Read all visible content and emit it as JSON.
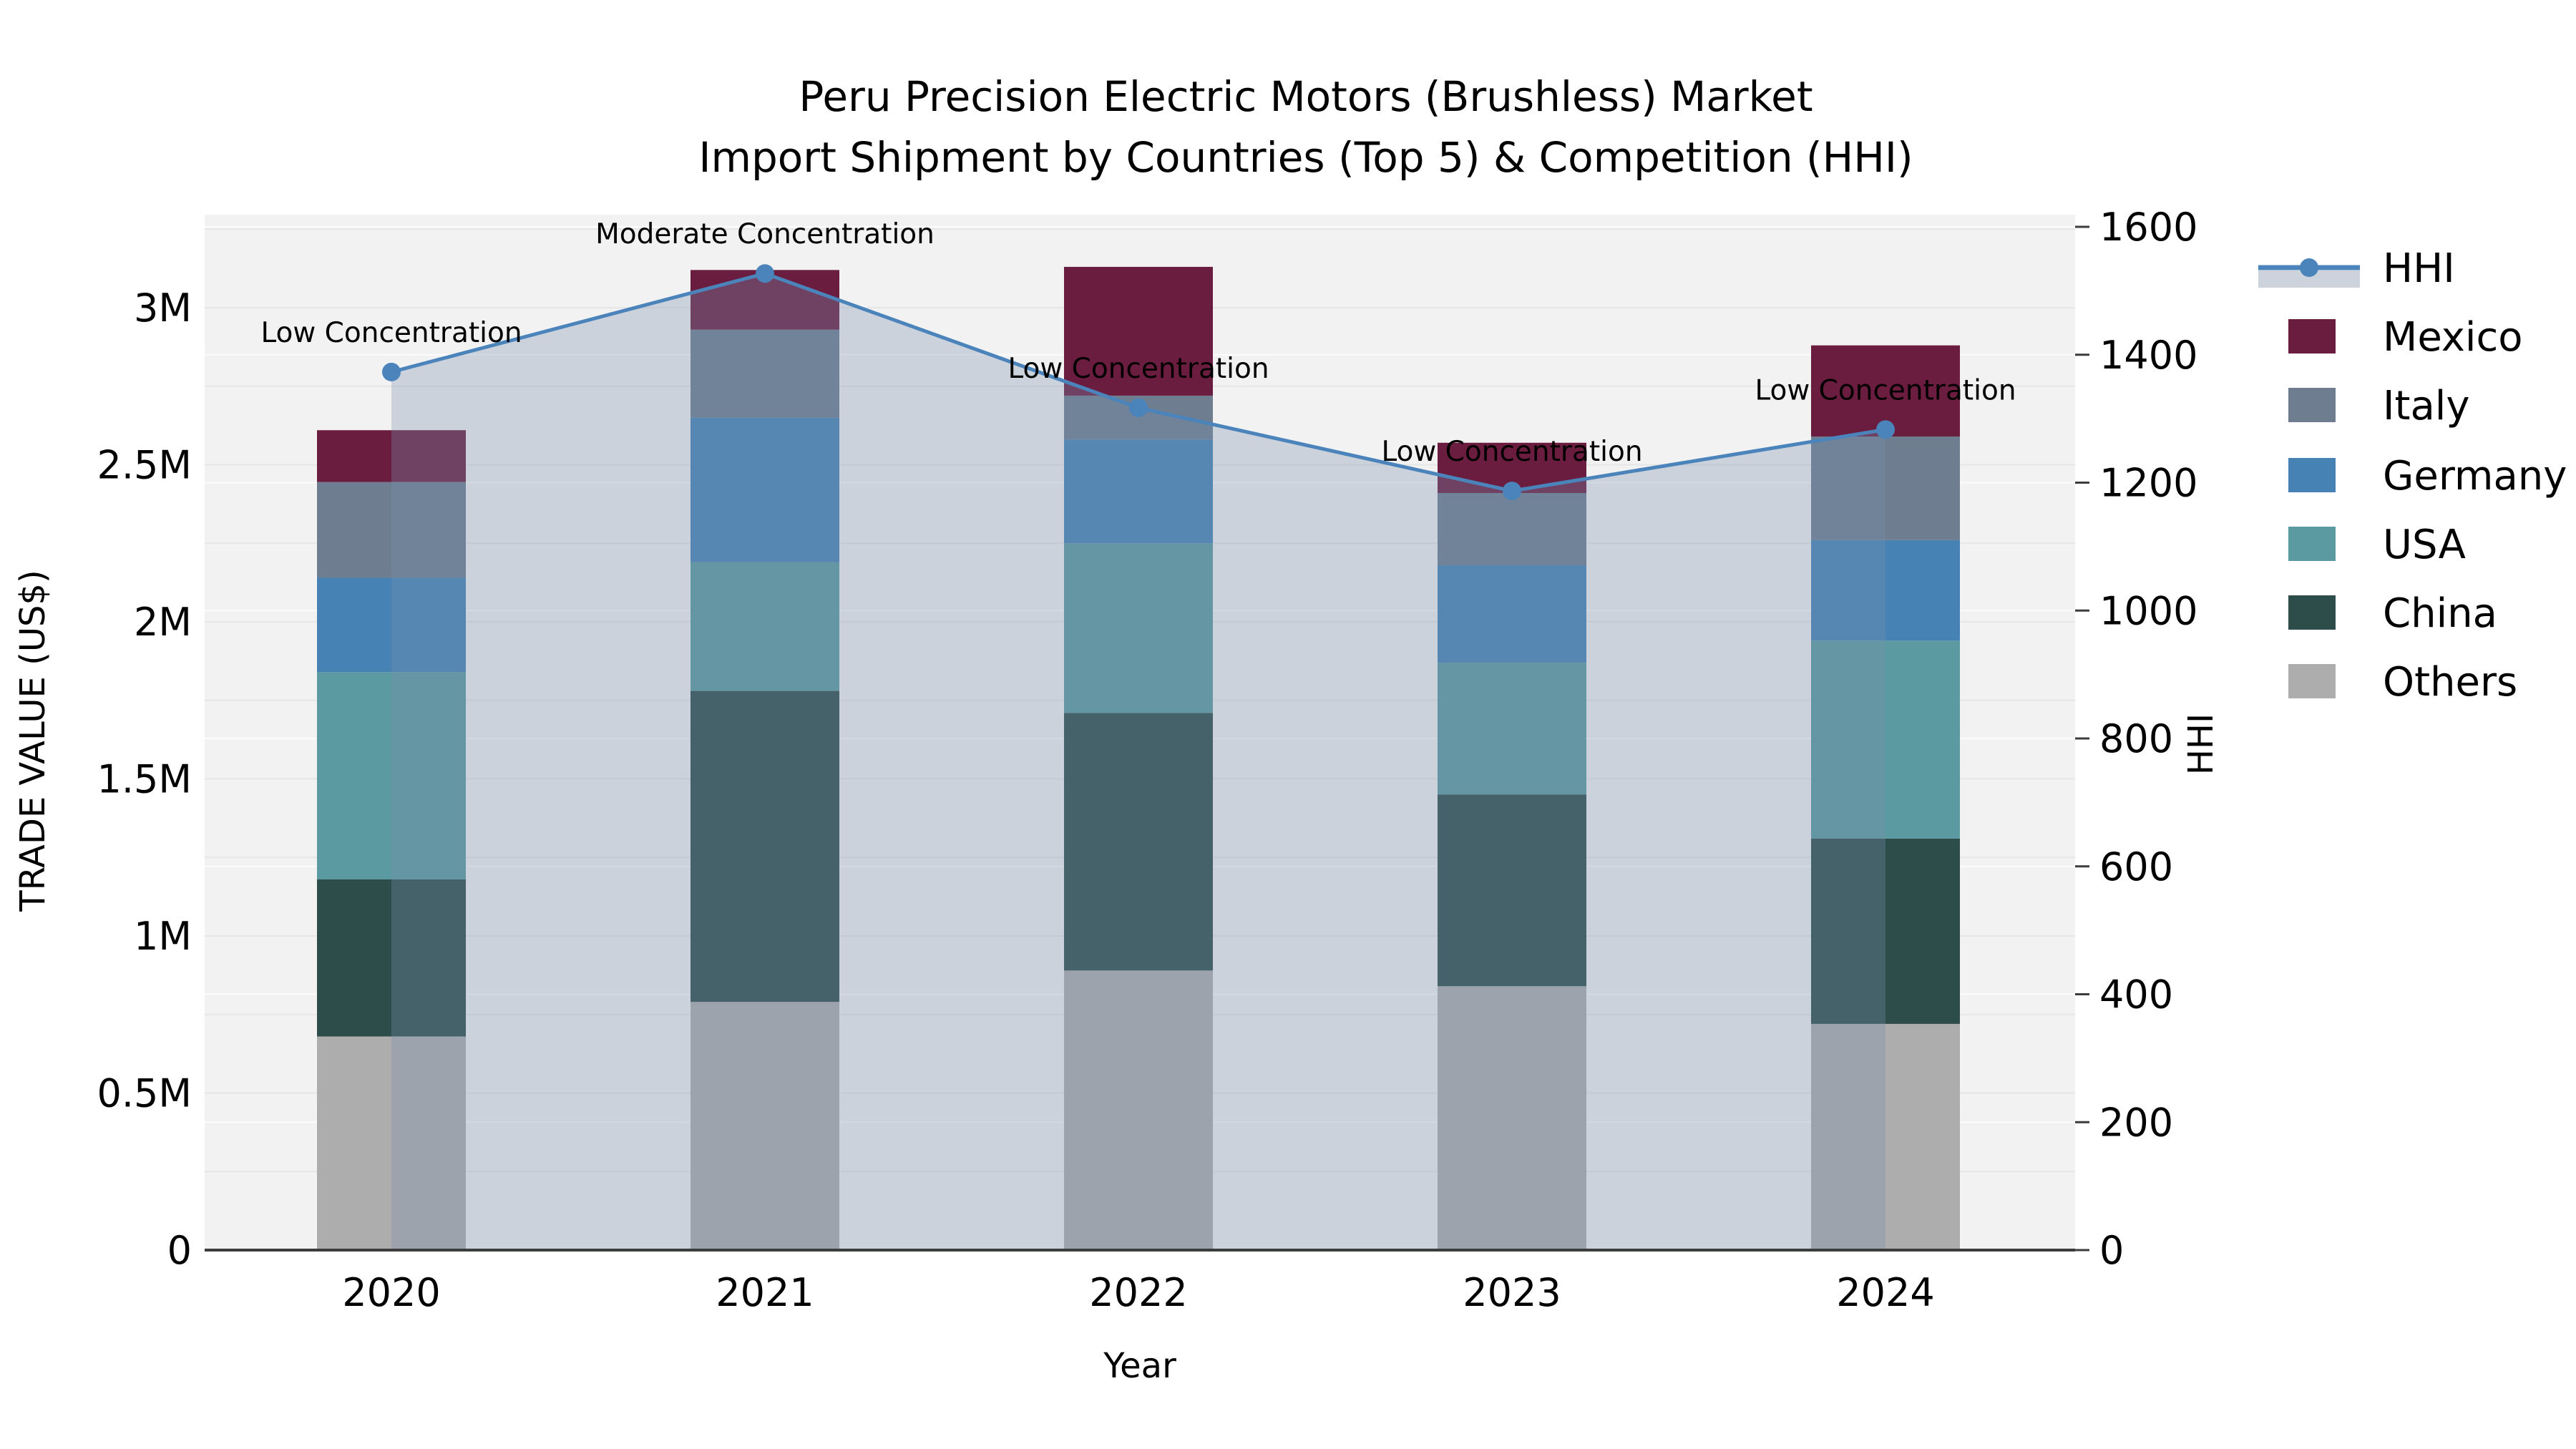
{
  "title": {
    "line1": "Peru Precision Electric Motors (Brushless) Market",
    "line2": "Import Shipment by Countries (Top 5) & Competition (HHI)"
  },
  "axes": {
    "x_title": "Year",
    "y_title": "TRADE VALUE (US$)",
    "y2_title": "HHI",
    "yticks": {
      "labels": [
        "0",
        "0.5M",
        "1M",
        "1.5M",
        "2M",
        "2.5M",
        "3M"
      ],
      "values": [
        0,
        500000,
        1000000,
        1500000,
        2000000,
        2500000,
        3000000
      ]
    },
    "y2ticks": {
      "labels": [
        "0",
        "200",
        "400",
        "600",
        "800",
        "1000",
        "1200",
        "1400",
        "1600"
      ],
      "values": [
        0,
        200,
        400,
        600,
        800,
        1000,
        1200,
        1400,
        1600
      ]
    },
    "xticks": {
      "labels": [
        "2020",
        "2021",
        "2022",
        "2023",
        "2024"
      ]
    }
  },
  "chart_data": {
    "type": "bar",
    "subtype": "stacked-bars-with-line-overlay",
    "categories": [
      2020,
      2021,
      2022,
      2023,
      2024
    ],
    "stack_order_bottom_to_top": [
      "Others",
      "China",
      "USA",
      "Germany",
      "Italy",
      "Mexico"
    ],
    "series": [
      {
        "name": "Mexico",
        "type": "bar",
        "color": "#6b1d3f",
        "values": [
          165000,
          190000,
          410000,
          160000,
          290000
        ]
      },
      {
        "name": "Italy",
        "type": "bar",
        "color": "#6e7e90",
        "values": [
          305000,
          280000,
          140000,
          230000,
          330000
        ]
      },
      {
        "name": "Germany",
        "type": "bar",
        "color": "#4682b4",
        "values": [
          300000,
          460000,
          330000,
          310000,
          320000
        ]
      },
      {
        "name": "USA",
        "type": "bar",
        "color": "#5b9aa0",
        "values": [
          660000,
          410000,
          540000,
          420000,
          630000
        ]
      },
      {
        "name": "China",
        "type": "bar",
        "color": "#2d4d4a",
        "values": [
          500000,
          990000,
          820000,
          610000,
          590000
        ]
      },
      {
        "name": "Others",
        "type": "bar",
        "color": "#adadad",
        "values": [
          680000,
          790000,
          890000,
          840000,
          720000
        ]
      }
    ],
    "totals": [
      2610000,
      3120000,
      3130000,
      2570000,
      2880000
    ],
    "hhi": {
      "name": "HHI",
      "type": "line",
      "color": "#4b83bb",
      "fill_color": "rgba(122,143,175,0.32)",
      "legend_fill_color": "#ccd3dd",
      "values": [
        1373,
        1527,
        1317,
        1187,
        1283
      ]
    },
    "annotations": [
      {
        "x": 2020,
        "text": "Low Concentration"
      },
      {
        "x": 2021,
        "text": "Moderate Concentration"
      },
      {
        "x": 2022,
        "text": "Low Concentration"
      },
      {
        "x": 2023,
        "text": "Low Concentration"
      },
      {
        "x": 2024,
        "text": "Low Concentration"
      }
    ],
    "title": "Peru Precision Electric Motors (Brushless) Market Import Shipment by Countries (Top 5) & Competition (HHI)",
    "xlabel": "Year",
    "ylabel": "TRADE VALUE (US$)",
    "y2label": "HHI",
    "ylim": [
      0,
      3300000
    ],
    "y2lim": [
      0,
      1650
    ],
    "grid": true,
    "legend_position": "right"
  },
  "legend": {
    "items": [
      {
        "label": "HHI"
      },
      {
        "label": "Mexico"
      },
      {
        "label": "Italy"
      },
      {
        "label": "Germany"
      },
      {
        "label": "USA"
      },
      {
        "label": "China"
      },
      {
        "label": "Others"
      }
    ]
  },
  "colors": {
    "plot_background": "#f2f2f2",
    "gridline": "#e6e6e6",
    "axis_line": "#3c3c3c"
  }
}
